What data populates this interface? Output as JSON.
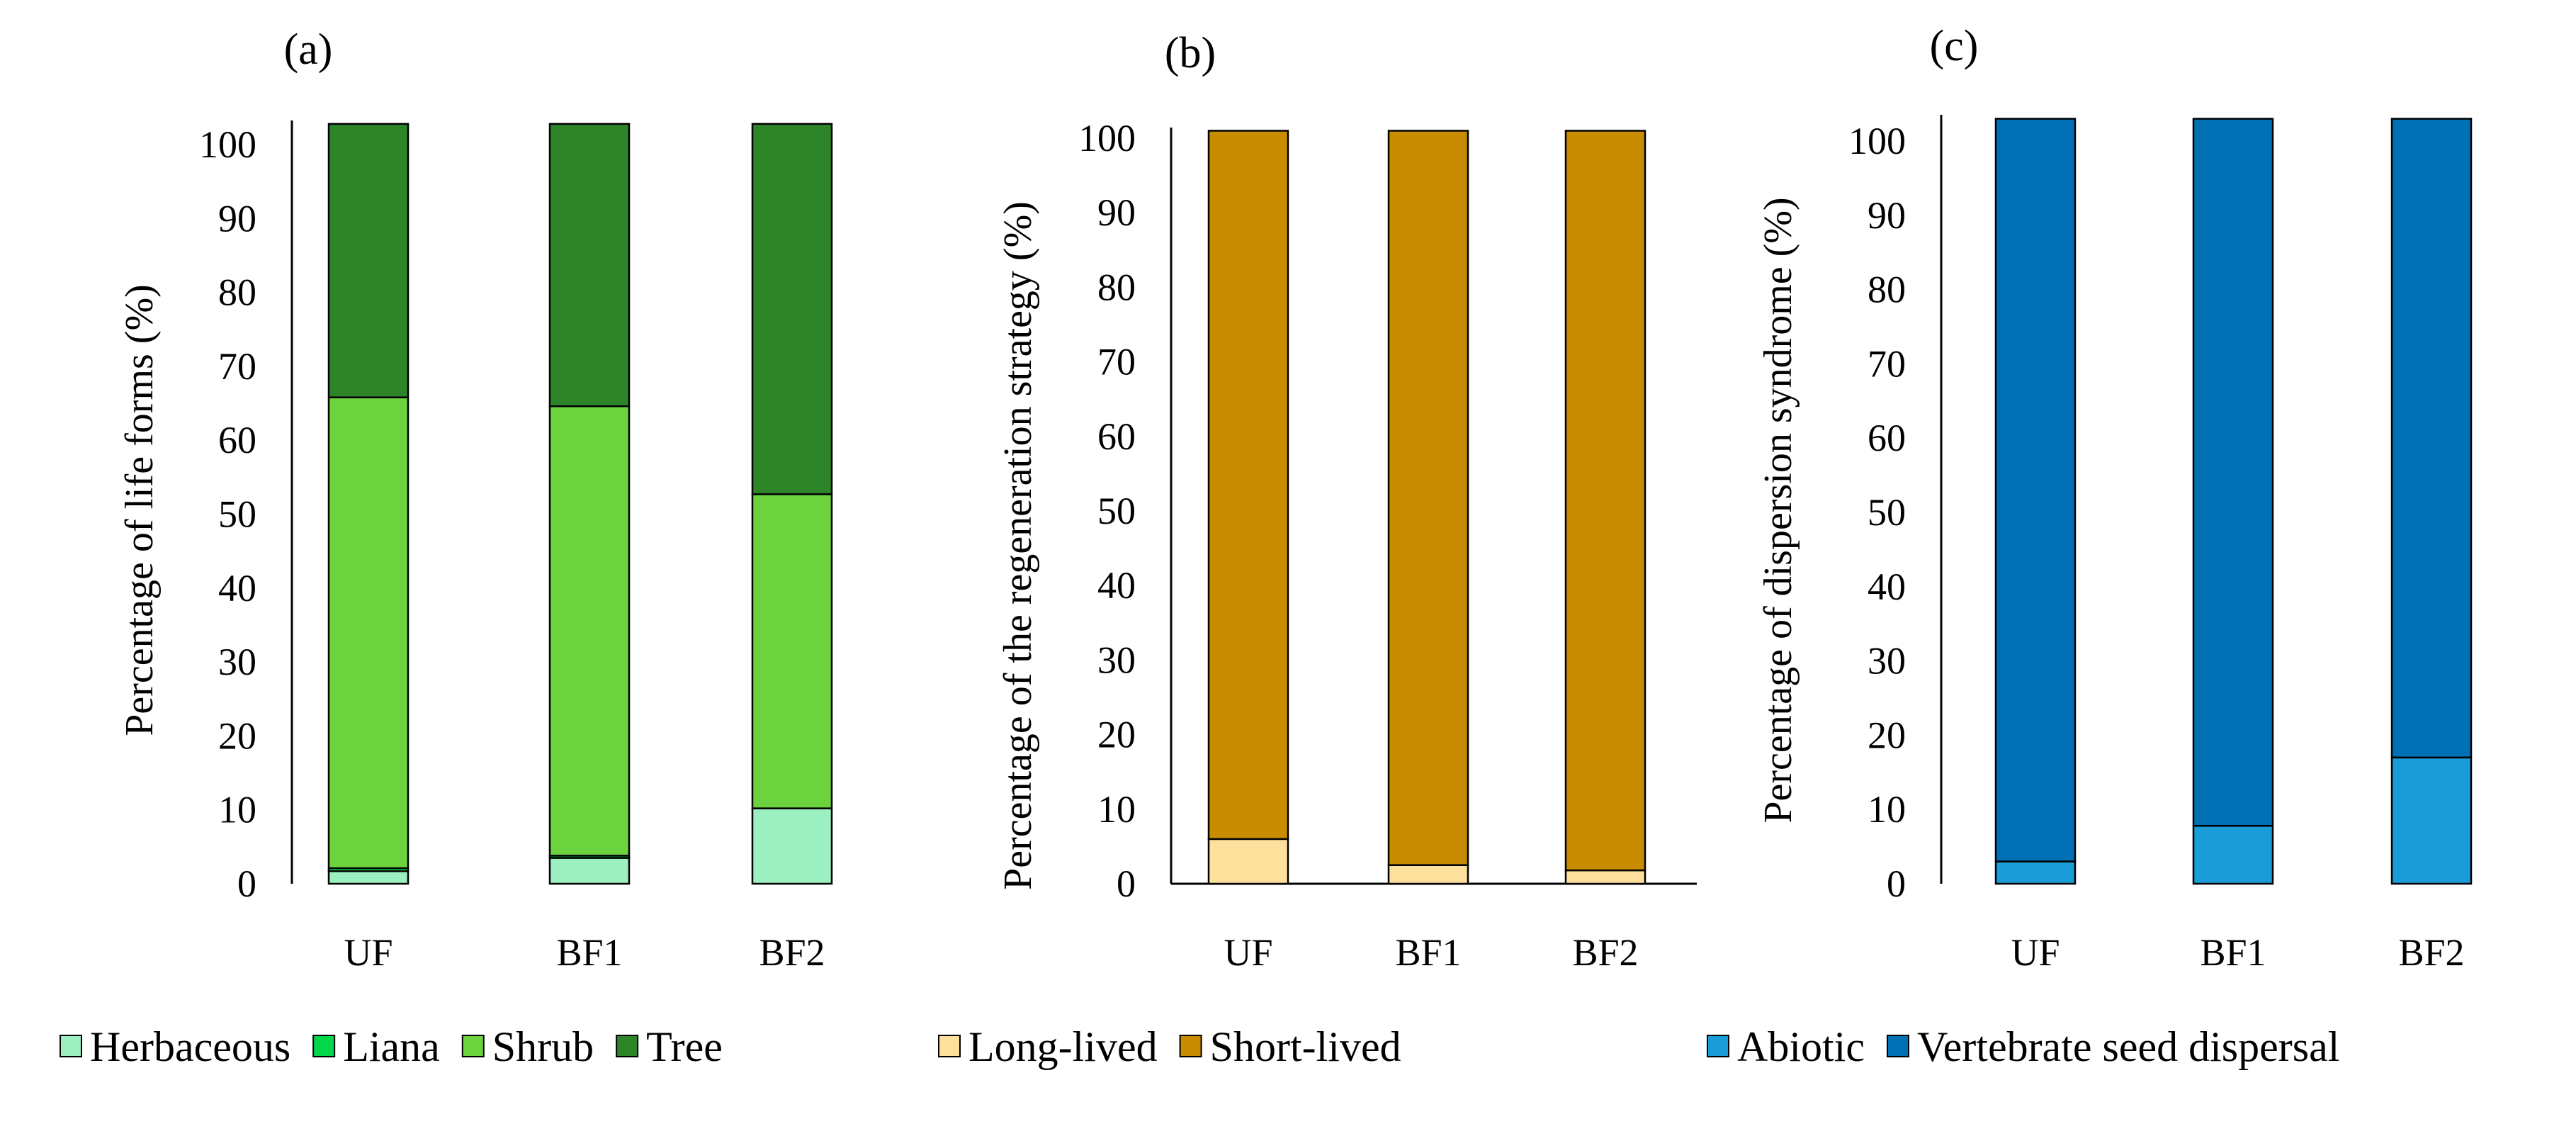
{
  "chart_data": [
    {
      "panel": "(a)",
      "type": "stacked-bar",
      "ylabel": "Percentage of life forms (%)",
      "ylim": [
        0,
        100
      ],
      "yticks": [
        "0",
        "10",
        "20",
        "30",
        "40",
        "50",
        "60",
        "70",
        "80",
        "90",
        "100"
      ],
      "categories": [
        "UF",
        "BF1",
        "BF2"
      ],
      "series": [
        {
          "name": "Herbaceous",
          "color": "#9cefc0",
          "values": [
            1.7,
            3.5,
            10.2
          ]
        },
        {
          "name": "Liana",
          "color": "#00d84a",
          "values": [
            0.4,
            0.3,
            0.0
          ]
        },
        {
          "name": "Shrub",
          "color": "#6cd33f",
          "values": [
            63.7,
            60.8,
            42.5
          ]
        },
        {
          "name": "Tree",
          "color": "#2e8529",
          "values": [
            37.0,
            38.2,
            50.1
          ]
        }
      ]
    },
    {
      "panel": "(b)",
      "type": "stacked-bar",
      "ylabel": "Percentage of the regeneration strategy  (%)",
      "ylim": [
        0,
        100
      ],
      "yticks": [
        "0",
        "10",
        "20",
        "30",
        "40",
        "50",
        "60",
        "70",
        "80",
        "90",
        "100"
      ],
      "categories": [
        "UF",
        "BF1",
        "BF2"
      ],
      "series": [
        {
          "name": "Long-lived",
          "color": "#fde09c",
          "values": [
            6.0,
            2.5,
            1.8
          ]
        },
        {
          "name": "Short-lived",
          "color": "#c98c00",
          "values": [
            95.0,
            98.5,
            99.2
          ]
        }
      ]
    },
    {
      "panel": "(c)",
      "type": "stacked-bar",
      "ylabel": "Percentage of dispersion syndrome (%)",
      "ylim": [
        0,
        100
      ],
      "yticks": [
        "0",
        "10",
        "20",
        "30",
        "40",
        "50",
        "60",
        "70",
        "80",
        "90",
        "100"
      ],
      "categories": [
        "UF",
        "BF1",
        "BF2"
      ],
      "series": [
        {
          "name": "Abiotic",
          "color": "#199cd8",
          "values": [
            3.0,
            7.8,
            17.0
          ]
        },
        {
          "name": "Vertebrate seed dispersal",
          "color": "#0070b5",
          "values": [
            100.0,
            95.2,
            86.0
          ]
        }
      ]
    }
  ]
}
